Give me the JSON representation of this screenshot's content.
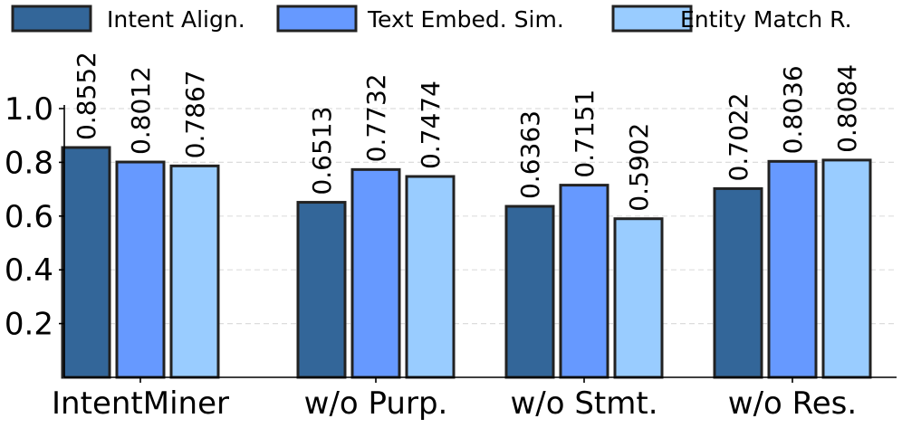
{
  "chart_data": {
    "type": "bar",
    "categories": [
      "IntentMiner",
      "w/o Purp.",
      "w/o Stmt.",
      "w/o Res."
    ],
    "series": [
      {
        "name": "Intent Align.",
        "color": "#336699",
        "values": [
          0.8552,
          0.6513,
          0.6363,
          0.7022
        ],
        "labels": [
          "0.8552",
          "0.6513",
          "0.6363",
          "0.7022"
        ]
      },
      {
        "name": "Text Embed. Sim.",
        "color": "#6699ff",
        "values": [
          0.8012,
          0.7732,
          0.7151,
          0.8036
        ],
        "labels": [
          "0.8012",
          "0.7732",
          "0.7151",
          "0.8036"
        ]
      },
      {
        "name": "Entity Match R.",
        "color": "#99ccff",
        "values": [
          0.7867,
          0.7474,
          0.5902,
          0.8084
        ],
        "labels": [
          "0.7867",
          "0.7474",
          "0.5902",
          "0.8084"
        ]
      }
    ],
    "ylim": [
      0,
      1.0
    ],
    "yticks": [
      "0.2",
      "0.4",
      "0.6",
      "0.8",
      "1.0"
    ],
    "ytick_values": [
      0.2,
      0.4,
      0.6,
      0.8,
      1.0
    ],
    "grid": "horizontal dashed",
    "legend_position": "top",
    "edge_color": "#222222",
    "title": "",
    "xlabel": "",
    "ylabel": ""
  }
}
